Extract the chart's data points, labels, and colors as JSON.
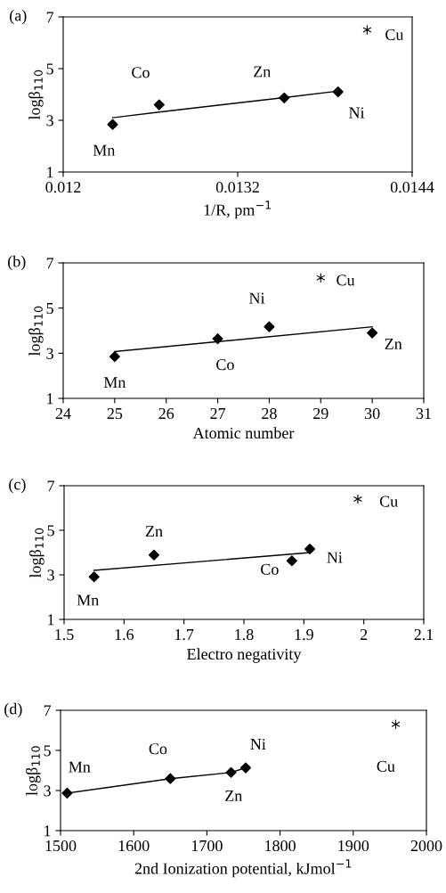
{
  "chart_data": [
    {
      "type": "scatter",
      "title": "(a)",
      "xlabel": "1/R, pm$^{−1}$",
      "ylabel": "logβ$_{110}$",
      "xlim": [
        0.012,
        0.0144
      ],
      "xticks": [
        0.012,
        0.0132,
        0.0144
      ],
      "ylim": [
        1,
        7
      ],
      "yticks": [
        1,
        3,
        5,
        7
      ],
      "marker": "diamond",
      "series": [
        {
          "name": "Mn",
          "color": "#000000",
          "x": [
            0.01234
          ],
          "values": [
            2.84
          ]
        },
        {
          "name": "Co",
          "color": "#000000",
          "x": [
            0.01266
          ],
          "values": [
            3.6
          ]
        },
        {
          "name": "Zn",
          "color": "#000000",
          "x": [
            0.01352
          ],
          "values": [
            3.87
          ]
        },
        {
          "name": "Ni",
          "color": "#000000",
          "x": [
            0.01389
          ],
          "values": [
            4.1
          ]
        },
        {
          "name": "Cu",
          "color": "#000000",
          "marker": "cross",
          "x": [
            0.01409
          ],
          "values": [
            6.5
          ]
        },
        {
          "type": "line",
          "color": "#000000",
          "marker": "none",
          "line_style": "solid",
          "x": [
            0.01234,
            0.01266,
            0.01352,
            0.01389
          ],
          "values": [
            3.1,
            3.32,
            3.88,
            4.13
          ]
        }
      ]
    },
    {
      "type": "scatter",
      "title": "(b)",
      "xlabel": "Atomic number",
      "ylabel": "logβ$_{110}$",
      "xlim": [
        24,
        31
      ],
      "xticks": [
        24,
        25,
        26,
        27,
        28,
        29,
        30,
        31
      ],
      "ylim": [
        1,
        7
      ],
      "yticks": [
        1,
        3,
        5,
        7
      ],
      "marker": "diamond",
      "series": [
        {
          "name": "Mn",
          "color": "#000000",
          "x": [
            25
          ],
          "values": [
            2.85
          ]
        },
        {
          "name": "Co",
          "color": "#000000",
          "x": [
            27
          ],
          "values": [
            3.64
          ]
        },
        {
          "name": "Zn",
          "color": "#000000",
          "x": [
            30
          ],
          "values": [
            3.9
          ]
        },
        {
          "name": "Ni",
          "color": "#000000",
          "x": [
            28
          ],
          "values": [
            4.17
          ]
        },
        {
          "name": "Cu",
          "color": "#000000",
          "marker": "cross",
          "x": [
            29
          ],
          "values": [
            6.34
          ]
        },
        {
          "type": "line",
          "color": "#000000",
          "marker": "none",
          "line_style": "solid",
          "x": [
            25,
            30
          ],
          "values": [
            3.07,
            4.17
          ]
        }
      ]
    },
    {
      "type": "scatter",
      "title": "(c)",
      "xlabel": "Electro negativity",
      "ylabel": "logβ$_{110}$",
      "xlim": [
        1.5,
        2.1
      ],
      "xticks": [
        1.5,
        1.6,
        1.7,
        1.8,
        1.9,
        2,
        2.1
      ],
      "ylim": [
        1,
        7
      ],
      "yticks": [
        1,
        3,
        5,
        7
      ],
      "marker": "diamond",
      "series": [
        {
          "name": "Mn",
          "color": "#000000",
          "x": [
            1.55
          ],
          "values": [
            2.91
          ]
        },
        {
          "name": "Co",
          "color": "#000000",
          "x": [
            1.88
          ],
          "values": [
            3.63
          ]
        },
        {
          "name": "Zn",
          "color": "#000000",
          "x": [
            1.65
          ],
          "values": [
            3.89
          ]
        },
        {
          "name": "Ni",
          "color": "#000000",
          "x": [
            1.91
          ],
          "values": [
            4.16
          ]
        },
        {
          "name": "Cu",
          "color": "#000000",
          "marker": "cross",
          "x": [
            1.99
          ],
          "values": [
            6.4
          ]
        },
        {
          "type": "line",
          "color": "#000000",
          "marker": "none",
          "line_style": "solid",
          "x": [
            1.55,
            1.91
          ],
          "values": [
            3.2,
            4.0
          ]
        }
      ]
    },
    {
      "type": "scatter",
      "title": "(d)",
      "xlabel": "2nd Ionization potential, kJmol$^{−1}$",
      "ylabel": "logβ$_{110}$",
      "xlim": [
        1500,
        2000
      ],
      "xticks": [
        1500,
        1600,
        1700,
        1800,
        1900,
        2000
      ],
      "ylim": [
        1,
        7
      ],
      "yticks": [
        1,
        3,
        5,
        7
      ],
      "marker": "diamond",
      "series": [
        {
          "name": "Mn",
          "color": "#000000",
          "x": [
            1509
          ],
          "values": [
            2.87
          ]
        },
        {
          "name": "Co",
          "color": "#000000",
          "x": [
            1650
          ],
          "values": [
            3.59
          ]
        },
        {
          "name": "Zn",
          "color": "#000000",
          "x": [
            1733
          ],
          "values": [
            3.9
          ]
        },
        {
          "name": "Ni",
          "color": "#000000",
          "x": [
            1753
          ],
          "values": [
            4.13
          ]
        },
        {
          "name": "Cu",
          "color": "#000000",
          "marker": "cross",
          "x": [
            1958
          ],
          "values": [
            6.3
          ]
        },
        {
          "type": "line",
          "color": "#000000",
          "marker": "none",
          "line_style": "solid",
          "x": [
            1509,
            1650,
            1733,
            1753
          ],
          "values": [
            2.87,
            3.59,
            3.9,
            4.13
          ]
        }
      ]
    }
  ]
}
